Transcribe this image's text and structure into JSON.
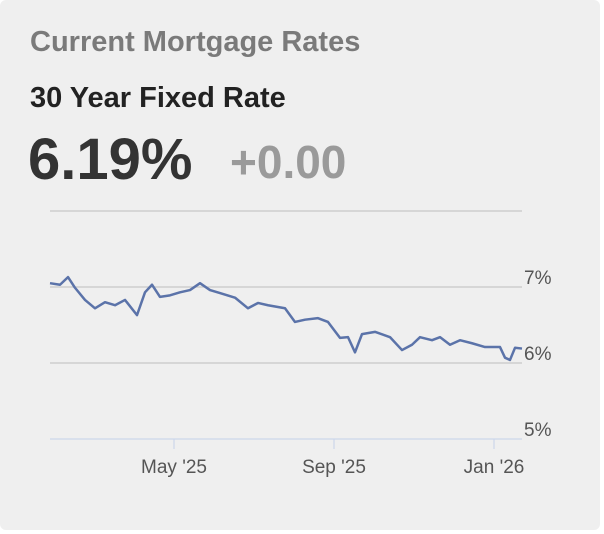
{
  "header": {
    "title": "Current Mortgage Rates",
    "subtitle": "30 Year Fixed Rate",
    "rate": "6.19%",
    "change": "+0.00"
  },
  "chart_data": {
    "type": "line",
    "x": [
      0.9,
      1.15,
      1.35,
      1.525,
      1.775,
      2.025,
      2.275,
      2.525,
      2.775,
      3.075,
      3.275,
      3.45,
      3.65,
      3.9,
      4.15,
      4.4,
      4.65,
      4.9,
      5.15,
      5.525,
      5.85,
      6.1,
      6.35,
      6.775,
      7.025,
      7.275,
      7.6,
      7.85,
      8.15,
      8.35,
      8.525,
      8.7,
      9.025,
      9.4,
      9.7,
      9.95,
      10.15,
      10.45,
      10.65,
      10.9,
      11.15,
      11.45,
      11.775,
      12.15,
      12.275,
      12.4,
      12.525,
      12.7
    ],
    "series": [
      {
        "color": "#5b73a9",
        "values": [
          7.05,
          7.03,
          7.13,
          6.99,
          6.83,
          6.72,
          6.8,
          6.76,
          6.83,
          6.63,
          6.93,
          7.03,
          6.87,
          6.89,
          6.93,
          6.96,
          7.05,
          6.96,
          6.92,
          6.86,
          6.72,
          6.79,
          6.76,
          6.72,
          6.54,
          6.57,
          6.59,
          6.54,
          6.33,
          6.34,
          6.14,
          6.38,
          6.41,
          6.34,
          6.17,
          6.24,
          6.34,
          6.3,
          6.34,
          6.24,
          6.3,
          6.26,
          6.21,
          6.21,
          6.07,
          6.04,
          6.2,
          6.19
        ]
      }
    ],
    "xlim": [
      0.9,
      12.7
    ],
    "xticks": [
      {
        "value": 4,
        "label": "May '25"
      },
      {
        "value": 8,
        "label": "Sep '25"
      },
      {
        "value": 12,
        "label": "Jan '26"
      }
    ],
    "ylim": [
      5,
      8
    ],
    "yticks": [
      {
        "value": 5,
        "label": "5%"
      },
      {
        "value": 6,
        "label": "6%"
      },
      {
        "value": 7,
        "label": "7%"
      }
    ],
    "grid": true
  }
}
